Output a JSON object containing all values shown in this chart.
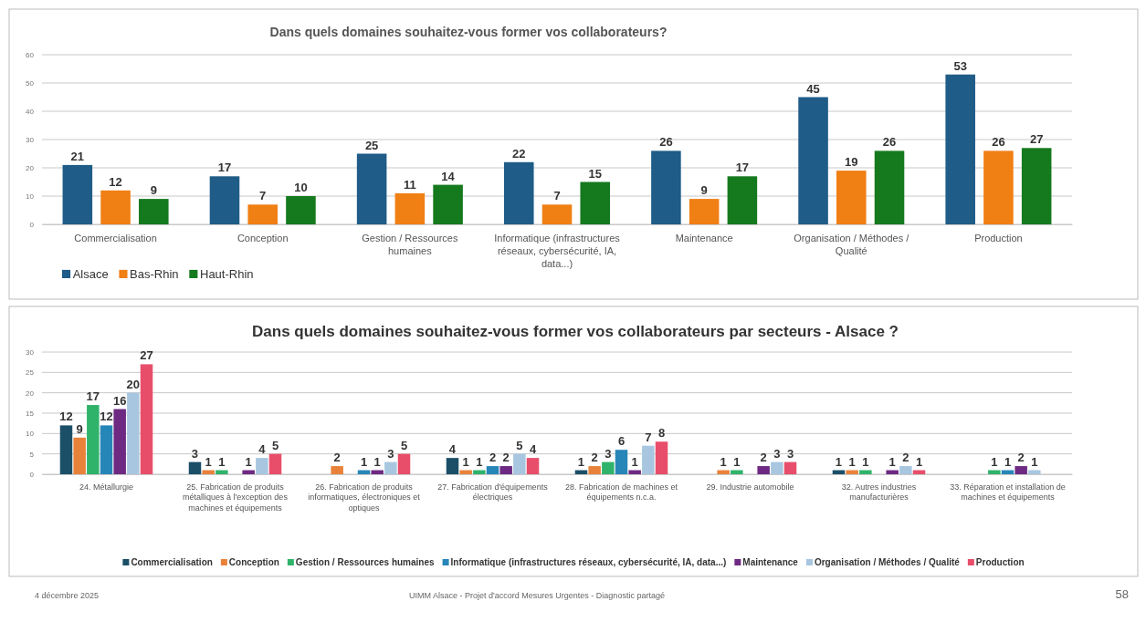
{
  "chart_data": [
    {
      "type": "bar",
      "title": "Dans quels domaines souhaitez-vous former vos collaborateurs?",
      "categories": [
        "Commercialisation",
        "Conception",
        "Gestion / Ressources humaines",
        "Informatique (infrastructures réseaux, cybersécurité, IA, data...)",
        "Maintenance",
        "Organisation / Méthodes / Qualité",
        "Production"
      ],
      "series": [
        {
          "name": "Alsace",
          "color": "#1f5c87",
          "values": [
            21,
            17,
            25,
            22,
            26,
            45,
            53
          ]
        },
        {
          "name": "Bas-Rhin",
          "color": "#f07f14",
          "values": [
            12,
            7,
            11,
            7,
            9,
            19,
            26
          ]
        },
        {
          "name": "Haut-Rhin",
          "color": "#157a1e",
          "values": [
            9,
            10,
            14,
            15,
            17,
            26,
            27
          ]
        }
      ],
      "ylim": [
        0,
        60
      ],
      "yticks": [
        0,
        10,
        20,
        30,
        40,
        50,
        60
      ],
      "grid": "y",
      "legend": "bottom left",
      "data_labels": true
    },
    {
      "type": "bar",
      "title": "Dans quels domaines souhaitez-vous former vos collaborateurs par secteurs - Alsace ?",
      "categories": [
        "24. Métallurgie",
        "25. Fabrication de produits métalliques à l'exception des machines et équipements",
        "26. Fabrication de produits informatiques, électroniques et optiques",
        "27. Fabrication d'équipements électriques",
        "28. Fabrication de machines et équipements n.c.a.",
        "29. Industrie automobile",
        "32. Autres industries manufacturières",
        "33. Réparation et installation de machines et équipements"
      ],
      "series": [
        {
          "name": "Commercialisation",
          "color": "#1b4f68",
          "values": [
            12,
            3,
            null,
            4,
            1,
            null,
            1,
            null
          ]
        },
        {
          "name": "Conception",
          "color": "#e8823a",
          "values": [
            9,
            1,
            2,
            1,
            2,
            1,
            1,
            null
          ]
        },
        {
          "name": "Gestion / Ressources humaines",
          "color": "#2fb36a",
          "values": [
            17,
            1,
            null,
            1,
            3,
            1,
            1,
            1
          ]
        },
        {
          "name": "Informatique (infrastructures réseaux, cybersécurité, IA, data...)",
          "color": "#2786b8",
          "values": [
            12,
            null,
            1,
            2,
            6,
            null,
            null,
            1
          ]
        },
        {
          "name": "Maintenance",
          "color": "#6e2a82",
          "values": [
            16,
            1,
            1,
            2,
            1,
            2,
            1,
            2
          ]
        },
        {
          "name": "Organisation / Méthodes / Qualité",
          "color": "#a8c6e0",
          "values": [
            20,
            4,
            3,
            5,
            7,
            3,
            2,
            1
          ]
        },
        {
          "name": "Production",
          "color": "#e84e6a",
          "values": [
            27,
            5,
            5,
            4,
            8,
            3,
            1,
            null
          ]
        }
      ],
      "ylim": [
        0,
        30
      ],
      "yticks": [
        0,
        5,
        10,
        15,
        20,
        25,
        30
      ],
      "grid": "y",
      "legend": "bottom",
      "data_labels": true,
      "annotations": [
        "4 décembre 2025",
        "UIMM Alsace - Projet d'accord Mesures Urgentes - Diagnostic partagé",
        "58"
      ]
    }
  ]
}
